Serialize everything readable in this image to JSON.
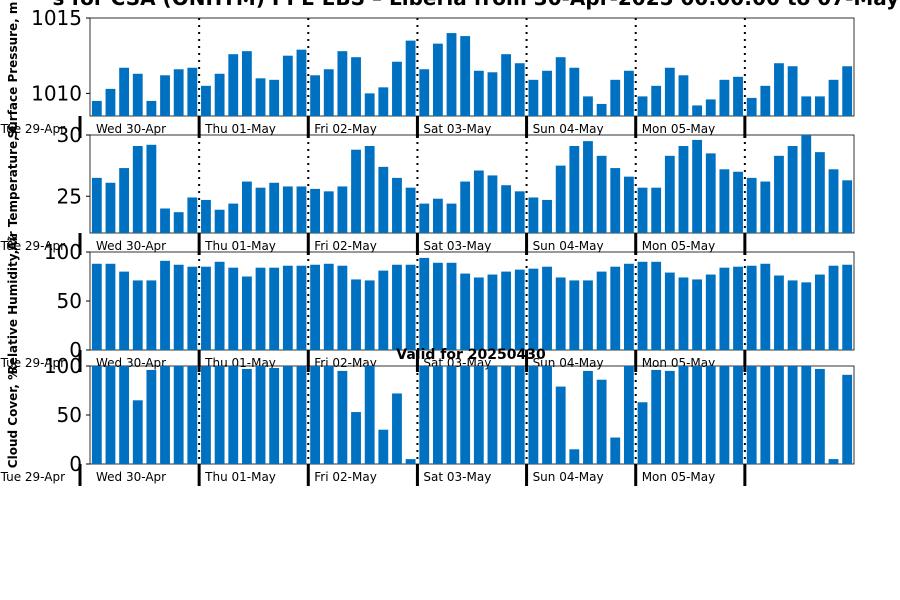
{
  "title": "s for CSA (ONHTM) PPE EBS  – Liberia from 30-Apr-2025 00:00:00 to 07-May-",
  "valid_label": "Valid for 20250430",
  "colors": {
    "bar": "#0070c0",
    "axis": "#000000"
  },
  "day_labels": [
    "Wed 30-Apr",
    "Thu 01-May",
    "Fri 02-May",
    "Sat 03-May",
    "Sun 04-May",
    "Mon 05-May"
  ],
  "edge_label": "Tue 29-Apr",
  "chart_data": [
    {
      "type": "bar",
      "ylabel": "Surface Pressure, m",
      "ylim": [
        1008.5,
        1015
      ],
      "yticks": [
        1010,
        1015
      ],
      "values": [
        1009.5,
        1010.3,
        1011.7,
        1011.3,
        1009.5,
        1011.2,
        1011.6,
        1011.7,
        1010.5,
        1011.3,
        1012.6,
        1012.8,
        1011.0,
        1010.9,
        1012.5,
        1012.9,
        1011.2,
        1011.6,
        1012.8,
        1012.4,
        1010.0,
        1010.4,
        1012.1,
        1013.5,
        1011.6,
        1013.3,
        1014.0,
        1013.8,
        1011.5,
        1011.4,
        1012.6,
        1012.0,
        1010.9,
        1011.5,
        1012.4,
        1011.7,
        1009.8,
        1009.3,
        1010.9,
        1011.5,
        1009.8,
        1010.5,
        1011.7,
        1011.2,
        1009.2,
        1009.6,
        1010.9,
        1011.1,
        1009.7,
        1010.5,
        1012.0,
        1011.8,
        1009.8,
        1009.8,
        1010.9,
        1011.8
      ]
    },
    {
      "type": "bar",
      "ylabel": "Air Temperature, C",
      "ylim": [
        22,
        30
      ],
      "yticks": [
        25,
        30
      ],
      "values": [
        26.5,
        26.1,
        27.3,
        29.1,
        29.2,
        24.0,
        23.7,
        24.9,
        24.7,
        23.9,
        24.4,
        26.2,
        25.7,
        26.1,
        25.8,
        25.8,
        25.6,
        25.4,
        25.8,
        28.8,
        29.1,
        27.4,
        26.5,
        25.7,
        24.4,
        24.8,
        24.4,
        26.2,
        27.1,
        26.7,
        25.9,
        25.4,
        24.9,
        24.7,
        27.5,
        29.1,
        29.5,
        28.3,
        27.3,
        26.6,
        25.7,
        25.7,
        28.3,
        29.1,
        29.6,
        28.5,
        27.2,
        27.0,
        26.5,
        26.2,
        28.3,
        29.1,
        30.0,
        28.6,
        27.2,
        26.3
      ]
    },
    {
      "type": "bar",
      "ylabel": "Relative Humidity, %",
      "ylim": [
        0,
        100
      ],
      "yticks": [
        0,
        50,
        100
      ],
      "values": [
        88,
        88,
        80,
        71,
        71,
        91,
        87,
        85,
        85,
        90,
        84,
        75,
        84,
        84,
        86,
        86,
        87,
        88,
        86,
        72,
        71,
        81,
        87,
        87,
        94,
        89,
        89,
        78,
        74,
        77,
        80,
        82,
        83,
        85,
        74,
        71,
        71,
        80,
        85,
        88,
        90,
        90,
        79,
        74,
        72,
        77,
        84,
        85,
        86,
        88,
        76,
        71,
        69,
        77,
        86,
        87
      ]
    },
    {
      "type": "bar",
      "ylabel": "Cloud Cover, %",
      "ylim": [
        0,
        100
      ],
      "yticks": [
        0,
        50,
        100
      ],
      "values": [
        100,
        100,
        100,
        65,
        96,
        100,
        100,
        100,
        100,
        100,
        100,
        97,
        100,
        98,
        100,
        100,
        100,
        100,
        95,
        53,
        100,
        35,
        72,
        5,
        100,
        100,
        100,
        100,
        100,
        100,
        100,
        100,
        100,
        100,
        79,
        15,
        95,
        86,
        27,
        100,
        63,
        96,
        95,
        100,
        100,
        100,
        100,
        100,
        100,
        100,
        100,
        100,
        100,
        97,
        5,
        91
      ]
    }
  ]
}
